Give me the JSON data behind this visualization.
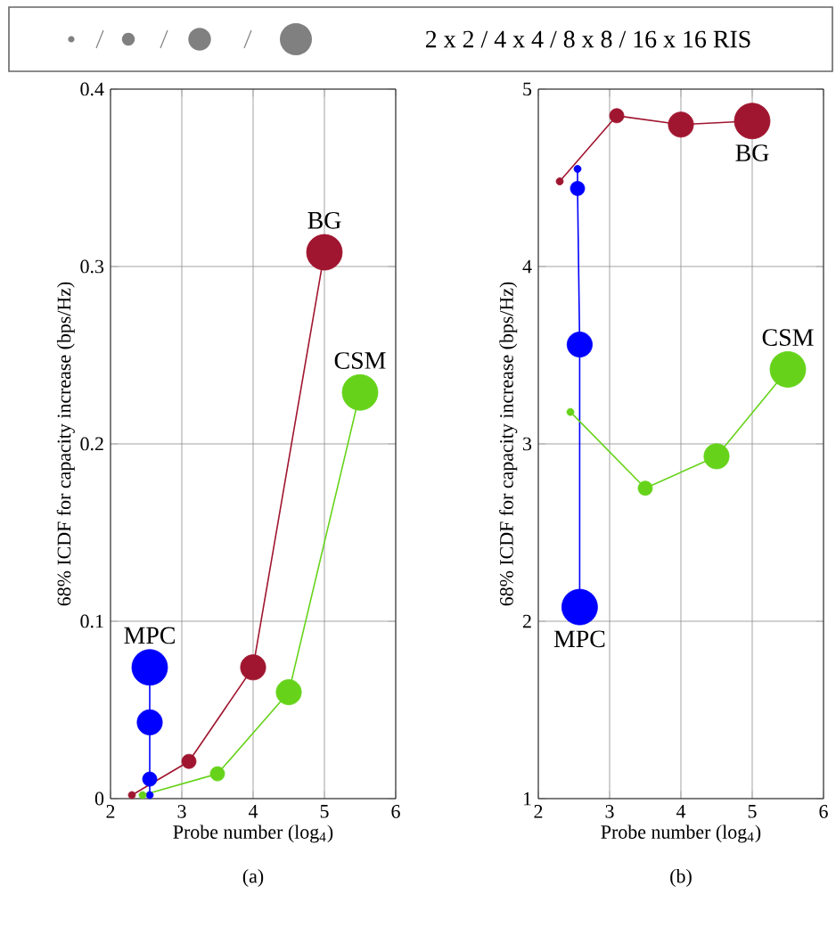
{
  "chart_data": [
    {
      "type": "bubble",
      "legend_title": "2 x 2 / 4 x 4 / 8 x 8 / 16 x 16 RIS",
      "xlabel": "Probe number (log$_{4}$)",
      "ylabel": "68% ICDF for capacity increase (bps/Hz)",
      "annotations": [
        "(a)"
      ],
      "xlim": [
        2,
        6
      ],
      "xticks": [
        2,
        3,
        4,
        5,
        6
      ],
      "ylim": [
        0,
        0.4
      ],
      "yticks": [
        0,
        0.1,
        0.2,
        0.3,
        0.4
      ],
      "grid": true,
      "marker": "circle",
      "series": [
        {
          "name": "BG",
          "color": "#a0152f",
          "x": [
            2.3,
            3.1,
            4.0,
            5.0
          ],
          "values": [
            0.002,
            0.021,
            0.074,
            0.308
          ],
          "sizes": [
            0.04,
            0.16,
            0.5,
            1
          ]
        },
        {
          "name": "MPC",
          "color": "#0000ff",
          "x": [
            2.55,
            2.55,
            2.55,
            2.55
          ],
          "values": [
            0.002,
            0.011,
            0.043,
            0.074
          ],
          "sizes": [
            0.04,
            0.16,
            0.5,
            1
          ]
        },
        {
          "name": "CSM",
          "color": "#66d31a",
          "x": [
            2.45,
            3.5,
            4.5,
            5.5
          ],
          "values": [
            0.002,
            0.014,
            0.06,
            0.229
          ],
          "sizes": [
            0.04,
            0.16,
            0.5,
            1
          ]
        }
      ]
    },
    {
      "type": "bubble",
      "xlabel": "Probe number (log$_{4}$)",
      "ylabel": "68% ICDF for capacity increase (bps/Hz)",
      "annotations": [
        "(b)"
      ],
      "xlim": [
        2,
        6
      ],
      "xticks": [
        2,
        3,
        4,
        5,
        6
      ],
      "ylim": [
        1,
        5
      ],
      "yticks": [
        1,
        2,
        3,
        4,
        5
      ],
      "grid": true,
      "marker": "circle",
      "series": [
        {
          "name": "BG",
          "color": "#a0152f",
          "x": [
            2.3,
            3.1,
            4.0,
            5.0
          ],
          "values": [
            4.48,
            4.85,
            4.8,
            4.82
          ],
          "sizes": [
            0.04,
            0.16,
            0.5,
            1
          ]
        },
        {
          "name": "MPC",
          "color": "#0000ff",
          "x": [
            2.55,
            2.55,
            2.58,
            2.58
          ],
          "values": [
            4.55,
            4.44,
            3.56,
            2.08
          ],
          "sizes": [
            0.04,
            0.16,
            0.5,
            1
          ]
        },
        {
          "name": "CSM",
          "color": "#66d31a",
          "x": [
            2.45,
            3.5,
            4.5,
            5.5
          ],
          "values": [
            3.18,
            2.75,
            2.93,
            3.42
          ],
          "sizes": [
            0.04,
            0.16,
            0.5,
            1
          ]
        }
      ]
    }
  ]
}
